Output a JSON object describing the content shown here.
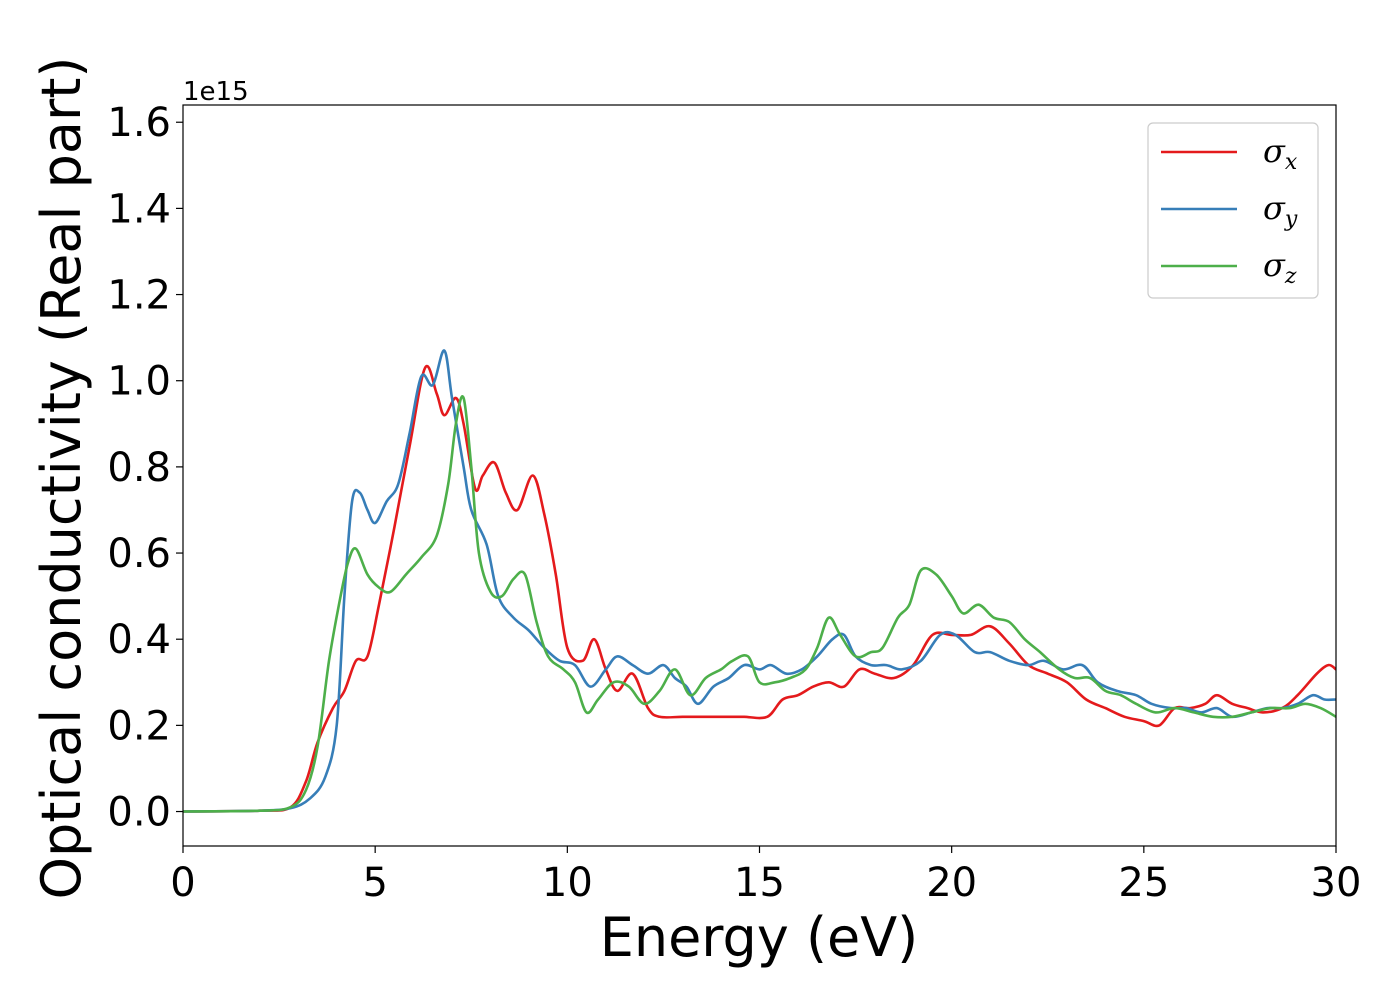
{
  "chart_data": {
    "type": "line",
    "title": "",
    "xlabel": "Energy (eV)",
    "ylabel": "Optical conductivity (Real part)",
    "y_offset_label": "1e15",
    "xlim": [
      0,
      30
    ],
    "ylim": [
      -0.08,
      1.64
    ],
    "x_ticks": [
      0,
      5,
      10,
      15,
      20,
      25,
      30
    ],
    "x_tick_labels": [
      "0",
      "5",
      "10",
      "15",
      "20",
      "25",
      "30"
    ],
    "y_ticks": [
      0.0,
      0.2,
      0.4,
      0.6,
      0.8,
      1.0,
      1.2,
      1.4,
      1.6
    ],
    "y_tick_labels": [
      "0.0",
      "0.2",
      "0.4",
      "0.6",
      "0.8",
      "1.0",
      "1.2",
      "1.4",
      "1.6"
    ],
    "grid": false,
    "legend_position": "top-right",
    "series": [
      {
        "name": "σx",
        "symbol": "σ",
        "subscript": "x",
        "color": "#e41a1c",
        "points": [
          [
            0,
            0
          ],
          [
            2,
            0.002
          ],
          [
            2.8,
            0.01
          ],
          [
            3.2,
            0.07
          ],
          [
            3.5,
            0.16
          ],
          [
            3.9,
            0.24
          ],
          [
            4.2,
            0.28
          ],
          [
            4.5,
            0.35
          ],
          [
            4.8,
            0.36
          ],
          [
            5.1,
            0.48
          ],
          [
            5.5,
            0.66
          ],
          [
            5.9,
            0.85
          ],
          [
            6.3,
            1.03
          ],
          [
            6.6,
            0.97
          ],
          [
            6.8,
            0.92
          ],
          [
            7.1,
            0.96
          ],
          [
            7.3,
            0.9
          ],
          [
            7.6,
            0.75
          ],
          [
            7.8,
            0.78
          ],
          [
            8.1,
            0.81
          ],
          [
            8.4,
            0.74
          ],
          [
            8.7,
            0.7
          ],
          [
            9.1,
            0.78
          ],
          [
            9.4,
            0.69
          ],
          [
            9.7,
            0.55
          ],
          [
            10.0,
            0.38
          ],
          [
            10.4,
            0.35
          ],
          [
            10.7,
            0.4
          ],
          [
            11.0,
            0.33
          ],
          [
            11.3,
            0.28
          ],
          [
            11.7,
            0.32
          ],
          [
            12.1,
            0.24
          ],
          [
            12.4,
            0.22
          ],
          [
            13.0,
            0.22
          ],
          [
            13.6,
            0.22
          ],
          [
            14.2,
            0.22
          ],
          [
            14.6,
            0.22
          ],
          [
            15.2,
            0.22
          ],
          [
            15.6,
            0.26
          ],
          [
            16.0,
            0.27
          ],
          [
            16.4,
            0.29
          ],
          [
            16.8,
            0.3
          ],
          [
            17.2,
            0.29
          ],
          [
            17.6,
            0.33
          ],
          [
            18.0,
            0.32
          ],
          [
            18.5,
            0.31
          ],
          [
            19.0,
            0.34
          ],
          [
            19.5,
            0.41
          ],
          [
            20.0,
            0.41
          ],
          [
            20.5,
            0.41
          ],
          [
            21.0,
            0.43
          ],
          [
            21.5,
            0.39
          ],
          [
            22.0,
            0.34
          ],
          [
            22.5,
            0.32
          ],
          [
            23.0,
            0.3
          ],
          [
            23.5,
            0.26
          ],
          [
            24.0,
            0.24
          ],
          [
            24.5,
            0.22
          ],
          [
            25.0,
            0.21
          ],
          [
            25.4,
            0.2
          ],
          [
            25.8,
            0.24
          ],
          [
            26.2,
            0.24
          ],
          [
            26.6,
            0.25
          ],
          [
            26.9,
            0.27
          ],
          [
            27.3,
            0.25
          ],
          [
            27.7,
            0.24
          ],
          [
            28.1,
            0.23
          ],
          [
            28.6,
            0.24
          ],
          [
            29.0,
            0.27
          ],
          [
            29.5,
            0.32
          ],
          [
            29.8,
            0.34
          ],
          [
            30.0,
            0.33
          ]
        ]
      },
      {
        "name": "σy",
        "symbol": "σ",
        "subscript": "y",
        "color": "#377eb8",
        "points": [
          [
            0,
            0
          ],
          [
            2,
            0.002
          ],
          [
            2.8,
            0.008
          ],
          [
            3.3,
            0.03
          ],
          [
            3.7,
            0.08
          ],
          [
            4.0,
            0.2
          ],
          [
            4.2,
            0.5
          ],
          [
            4.4,
            0.72
          ],
          [
            4.6,
            0.74
          ],
          [
            4.8,
            0.7
          ],
          [
            5.0,
            0.67
          ],
          [
            5.3,
            0.72
          ],
          [
            5.6,
            0.76
          ],
          [
            5.9,
            0.88
          ],
          [
            6.2,
            1.01
          ],
          [
            6.5,
            0.99
          ],
          [
            6.8,
            1.07
          ],
          [
            7.0,
            0.96
          ],
          [
            7.3,
            0.8
          ],
          [
            7.5,
            0.7
          ],
          [
            7.9,
            0.62
          ],
          [
            8.2,
            0.5
          ],
          [
            8.6,
            0.45
          ],
          [
            9.0,
            0.42
          ],
          [
            9.4,
            0.38
          ],
          [
            9.8,
            0.35
          ],
          [
            10.2,
            0.34
          ],
          [
            10.6,
            0.29
          ],
          [
            11.0,
            0.33
          ],
          [
            11.3,
            0.36
          ],
          [
            11.7,
            0.34
          ],
          [
            12.1,
            0.32
          ],
          [
            12.5,
            0.34
          ],
          [
            12.8,
            0.31
          ],
          [
            13.1,
            0.29
          ],
          [
            13.4,
            0.25
          ],
          [
            13.8,
            0.29
          ],
          [
            14.2,
            0.31
          ],
          [
            14.6,
            0.34
          ],
          [
            15.0,
            0.33
          ],
          [
            15.3,
            0.34
          ],
          [
            15.7,
            0.32
          ],
          [
            16.1,
            0.33
          ],
          [
            16.5,
            0.36
          ],
          [
            16.9,
            0.4
          ],
          [
            17.2,
            0.41
          ],
          [
            17.5,
            0.36
          ],
          [
            17.9,
            0.34
          ],
          [
            18.3,
            0.34
          ],
          [
            18.7,
            0.33
          ],
          [
            19.2,
            0.35
          ],
          [
            19.7,
            0.41
          ],
          [
            20.1,
            0.41
          ],
          [
            20.6,
            0.37
          ],
          [
            21.0,
            0.37
          ],
          [
            21.5,
            0.35
          ],
          [
            22.0,
            0.34
          ],
          [
            22.4,
            0.35
          ],
          [
            22.9,
            0.33
          ],
          [
            23.4,
            0.34
          ],
          [
            23.8,
            0.3
          ],
          [
            24.3,
            0.28
          ],
          [
            24.8,
            0.27
          ],
          [
            25.2,
            0.25
          ],
          [
            25.7,
            0.24
          ],
          [
            26.1,
            0.24
          ],
          [
            26.5,
            0.23
          ],
          [
            26.9,
            0.24
          ],
          [
            27.3,
            0.22
          ],
          [
            27.8,
            0.23
          ],
          [
            28.2,
            0.24
          ],
          [
            28.6,
            0.24
          ],
          [
            29.0,
            0.25
          ],
          [
            29.4,
            0.27
          ],
          [
            29.7,
            0.26
          ],
          [
            30.0,
            0.26
          ]
        ]
      },
      {
        "name": "σz",
        "symbol": "σ",
        "subscript": "z",
        "color": "#4daf4a",
        "points": [
          [
            0,
            0
          ],
          [
            2,
            0.002
          ],
          [
            2.8,
            0.01
          ],
          [
            3.2,
            0.05
          ],
          [
            3.5,
            0.15
          ],
          [
            3.8,
            0.35
          ],
          [
            4.1,
            0.5
          ],
          [
            4.3,
            0.58
          ],
          [
            4.5,
            0.61
          ],
          [
            4.8,
            0.55
          ],
          [
            5.1,
            0.52
          ],
          [
            5.4,
            0.51
          ],
          [
            5.8,
            0.55
          ],
          [
            6.2,
            0.59
          ],
          [
            6.6,
            0.64
          ],
          [
            6.9,
            0.76
          ],
          [
            7.1,
            0.9
          ],
          [
            7.3,
            0.96
          ],
          [
            7.5,
            0.8
          ],
          [
            7.7,
            0.6
          ],
          [
            8.0,
            0.51
          ],
          [
            8.3,
            0.5
          ],
          [
            8.6,
            0.54
          ],
          [
            8.9,
            0.55
          ],
          [
            9.2,
            0.44
          ],
          [
            9.5,
            0.36
          ],
          [
            9.9,
            0.33
          ],
          [
            10.2,
            0.3
          ],
          [
            10.5,
            0.23
          ],
          [
            10.8,
            0.26
          ],
          [
            11.2,
            0.3
          ],
          [
            11.6,
            0.29
          ],
          [
            12.0,
            0.25
          ],
          [
            12.4,
            0.28
          ],
          [
            12.8,
            0.33
          ],
          [
            13.2,
            0.27
          ],
          [
            13.6,
            0.31
          ],
          [
            14.0,
            0.33
          ],
          [
            14.3,
            0.35
          ],
          [
            14.7,
            0.36
          ],
          [
            15.0,
            0.3
          ],
          [
            15.4,
            0.3
          ],
          [
            15.8,
            0.31
          ],
          [
            16.2,
            0.33
          ],
          [
            16.5,
            0.38
          ],
          [
            16.8,
            0.45
          ],
          [
            17.1,
            0.41
          ],
          [
            17.5,
            0.36
          ],
          [
            17.9,
            0.37
          ],
          [
            18.2,
            0.38
          ],
          [
            18.6,
            0.45
          ],
          [
            18.9,
            0.48
          ],
          [
            19.2,
            0.56
          ],
          [
            19.6,
            0.55
          ],
          [
            20.0,
            0.5
          ],
          [
            20.3,
            0.46
          ],
          [
            20.7,
            0.48
          ],
          [
            21.1,
            0.45
          ],
          [
            21.5,
            0.44
          ],
          [
            21.9,
            0.4
          ],
          [
            22.3,
            0.37
          ],
          [
            22.8,
            0.33
          ],
          [
            23.2,
            0.31
          ],
          [
            23.6,
            0.31
          ],
          [
            24.0,
            0.28
          ],
          [
            24.4,
            0.27
          ],
          [
            24.8,
            0.25
          ],
          [
            25.3,
            0.23
          ],
          [
            25.8,
            0.24
          ],
          [
            26.3,
            0.23
          ],
          [
            26.8,
            0.22
          ],
          [
            27.3,
            0.22
          ],
          [
            27.8,
            0.23
          ],
          [
            28.3,
            0.24
          ],
          [
            28.8,
            0.24
          ],
          [
            29.2,
            0.25
          ],
          [
            29.6,
            0.24
          ],
          [
            30.0,
            0.22
          ]
        ]
      }
    ]
  }
}
